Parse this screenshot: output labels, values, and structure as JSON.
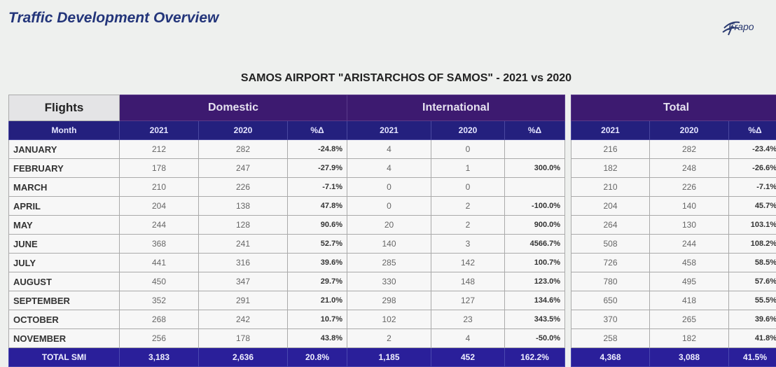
{
  "header": {
    "title": "Traffic Development Overview",
    "logo": "Frapo"
  },
  "subtitle": "SAMOS AIRPORT \"ARISTARCHOS OF SAMOS\" - 2021 vs 2020",
  "table": {
    "corner": "Flights",
    "month_label": "Month",
    "groups": [
      "Domestic",
      "International",
      "Total"
    ],
    "columns": [
      "2021",
      "2020",
      "%Δ"
    ],
    "rows": [
      [
        "JANUARY",
        "212",
        "282",
        "-24.8%",
        "4",
        "0",
        null,
        "216",
        "282",
        "-23.4%"
      ],
      [
        "FEBRUARY",
        "178",
        "247",
        "-27.9%",
        "4",
        "1",
        "300.0%",
        "182",
        "248",
        "-26.6%"
      ],
      [
        "MARCH",
        "210",
        "226",
        "-7.1%",
        "0",
        "0",
        null,
        "210",
        "226",
        "-7.1%"
      ],
      [
        "APRIL",
        "204",
        "138",
        "47.8%",
        "0",
        "2",
        "-100.0%",
        "204",
        "140",
        "45.7%"
      ],
      [
        "MAY",
        "244",
        "128",
        "90.6%",
        "20",
        "2",
        "900.0%",
        "264",
        "130",
        "103.1%"
      ],
      [
        "JUNE",
        "368",
        "241",
        "52.7%",
        "140",
        "3",
        "4566.7%",
        "508",
        "244",
        "108.2%"
      ],
      [
        "JULY",
        "441",
        "316",
        "39.6%",
        "285",
        "142",
        "100.7%",
        "726",
        "458",
        "58.5%"
      ],
      [
        "AUGUST",
        "450",
        "347",
        "29.7%",
        "330",
        "148",
        "123.0%",
        "780",
        "495",
        "57.6%"
      ],
      [
        "SEPTEMBER",
        "352",
        "291",
        "21.0%",
        "298",
        "127",
        "134.6%",
        "650",
        "418",
        "55.5%"
      ],
      [
        "OCTOBER",
        "268",
        "242",
        "10.7%",
        "102",
        "23",
        "343.5%",
        "370",
        "265",
        "39.6%"
      ],
      [
        "NOVEMBER",
        "256",
        "178",
        "43.8%",
        "2",
        "4",
        "-50.0%",
        "258",
        "182",
        "41.8%"
      ]
    ],
    "total": [
      "TOTAL SMI",
      "3,183",
      "2,636",
      "20.8%",
      "1,185",
      "452",
      "162.2%",
      "4,368",
      "3,088",
      "41.5%"
    ]
  }
}
